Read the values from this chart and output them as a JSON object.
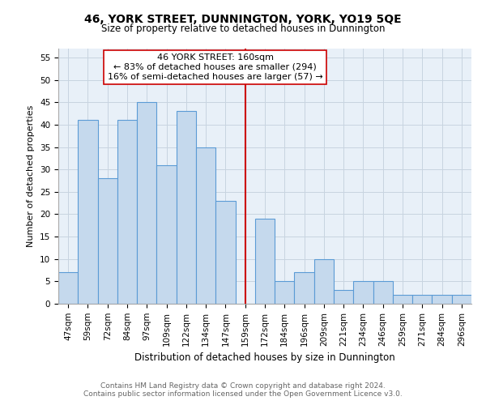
{
  "title": "46, YORK STREET, DUNNINGTON, YORK, YO19 5QE",
  "subtitle": "Size of property relative to detached houses in Dunnington",
  "xlabel": "Distribution of detached houses by size in Dunnington",
  "ylabel": "Number of detached properties",
  "bin_labels": [
    "47sqm",
    "59sqm",
    "72sqm",
    "84sqm",
    "97sqm",
    "109sqm",
    "122sqm",
    "134sqm",
    "147sqm",
    "159sqm",
    "172sqm",
    "184sqm",
    "196sqm",
    "209sqm",
    "221sqm",
    "234sqm",
    "246sqm",
    "259sqm",
    "271sqm",
    "284sqm",
    "296sqm"
  ],
  "bar_heights": [
    7,
    41,
    28,
    41,
    45,
    31,
    43,
    35,
    23,
    0,
    19,
    5,
    7,
    10,
    3,
    5,
    5,
    2,
    2,
    2,
    2
  ],
  "bar_color": "#c5d9ed",
  "bar_edge_color": "#5b9bd5",
  "marker_index": 9,
  "marker_line_color": "#cc0000",
  "marker_box_text_line1": "46 YORK STREET: 160sqm",
  "marker_box_text_line2": "← 83% of detached houses are smaller (294)",
  "marker_box_text_line3": "16% of semi-detached houses are larger (57) →",
  "box_edge_color": "#cc0000",
  "ylim": [
    0,
    57
  ],
  "yticks": [
    0,
    5,
    10,
    15,
    20,
    25,
    30,
    35,
    40,
    45,
    50,
    55
  ],
  "footer_line1": "Contains HM Land Registry data © Crown copyright and database right 2024.",
  "footer_line2": "Contains public sector information licensed under the Open Government Licence v3.0.",
  "bg_color": "#ffffff",
  "plot_bg_color": "#e8f0f8",
  "grid_color": "#c8d4e0",
  "title_fontsize": 10,
  "subtitle_fontsize": 8.5,
  "xlabel_fontsize": 8.5,
  "ylabel_fontsize": 8,
  "tick_fontsize": 7.5,
  "footer_fontsize": 6.5,
  "annotation_fontsize": 8
}
